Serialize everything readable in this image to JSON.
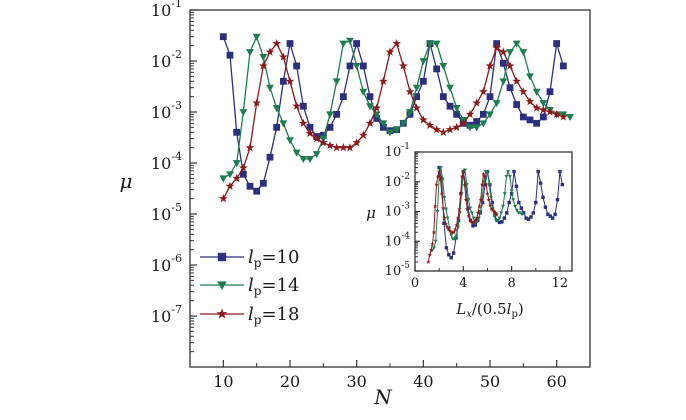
{
  "chart_data": [
    {
      "type": "line",
      "x_title": "N",
      "y_title": "μ",
      "y_scale": "log",
      "xlim": [
        5,
        65
      ],
      "ylim_exponents": [
        -8,
        -1
      ],
      "x_ticks": [
        10,
        20,
        30,
        40,
        50,
        60
      ],
      "y_ticks_exponents": [
        -7,
        -6,
        -5,
        -4,
        -3,
        -2,
        -1
      ],
      "legend_position": "bottom-left",
      "series": [
        {
          "name": "lp=10",
          "sub_base": "l",
          "sub": "p",
          "value_text": "=10",
          "color": "#2b2f7e",
          "marker": "square",
          "x": [
            10,
            11,
            12,
            13,
            14,
            15,
            16,
            17,
            18,
            19,
            20,
            21,
            22,
            23,
            24,
            25,
            26,
            27,
            28,
            29,
            30,
            31,
            32,
            33,
            34,
            35,
            36,
            37,
            38,
            39,
            40,
            41,
            42,
            43,
            44,
            45,
            46,
            47,
            48,
            49,
            50,
            51,
            52,
            53,
            54,
            55,
            56,
            57,
            58,
            59,
            60,
            61
          ],
          "y": [
            0.03,
            0.013,
            0.0004,
            6e-05,
            3.5e-05,
            2.8e-05,
            4e-05,
            0.00013,
            0.0005,
            0.004,
            0.022,
            0.008,
            0.0013,
            0.0005,
            0.00033,
            0.00035,
            0.0005,
            0.0009,
            0.002,
            0.008,
            0.022,
            0.008,
            0.002,
            0.00075,
            0.0005,
            0.00043,
            0.00045,
            0.0006,
            0.0009,
            0.002,
            0.004,
            0.022,
            0.007,
            0.002,
            0.0013,
            0.0009,
            0.0006,
            0.00055,
            0.00065,
            0.0009,
            0.002,
            0.022,
            0.009,
            0.003,
            0.0014,
            0.0008,
            0.0007,
            0.0006,
            0.0008,
            0.0025,
            0.022,
            0.008
          ]
        },
        {
          "name": "lp=14",
          "sub_base": "l",
          "sub": "p",
          "value_text": "=14",
          "color": "#1e7d4e",
          "marker": "triangle-down",
          "x": [
            10,
            11,
            12,
            13,
            14,
            15,
            16,
            17,
            18,
            19,
            20,
            21,
            22,
            23,
            24,
            25,
            26,
            27,
            28,
            29,
            30,
            31,
            32,
            33,
            34,
            35,
            36,
            37,
            38,
            39,
            40,
            41,
            42,
            43,
            44,
            45,
            46,
            47,
            48,
            49,
            50,
            51,
            52,
            53,
            54,
            55,
            56,
            57,
            58,
            59,
            60,
            61,
            62
          ],
          "y": [
            5e-05,
            6e-05,
            0.0001,
            0.001,
            0.015,
            0.03,
            0.012,
            0.003,
            0.0012,
            0.0006,
            0.00028,
            0.00016,
            0.00012,
            0.00012,
            0.00015,
            0.0003,
            0.0009,
            0.004,
            0.022,
            0.025,
            0.008,
            0.0025,
            0.0013,
            0.0009,
            0.0006,
            0.0004,
            0.00045,
            0.0006,
            0.001,
            0.003,
            0.01,
            0.022,
            0.022,
            0.008,
            0.003,
            0.0012,
            0.0007,
            0.0005,
            0.0005,
            0.0006,
            0.0009,
            0.0015,
            0.004,
            0.015,
            0.022,
            0.015,
            0.005,
            0.0025,
            0.0015,
            0.0011,
            0.0009,
            0.0009,
            0.0008
          ]
        },
        {
          "name": "lp=18",
          "sub_base": "l",
          "sub": "p",
          "value_text": "=18",
          "color": "#8b1a1a",
          "marker": "star",
          "x": [
            10,
            11,
            12,
            13,
            14,
            15,
            16,
            17,
            18,
            19,
            20,
            21,
            22,
            23,
            24,
            25,
            26,
            27,
            28,
            29,
            30,
            31,
            32,
            33,
            34,
            35,
            36,
            37,
            38,
            39,
            40,
            41,
            42,
            43,
            44,
            45,
            46,
            47,
            48,
            49,
            50,
            51,
            52,
            53,
            54,
            55,
            56,
            57,
            58,
            59,
            60,
            61
          ],
          "y": [
            2e-05,
            3.5e-05,
            5e-05,
            8e-05,
            0.0002,
            0.0015,
            0.008,
            0.015,
            0.022,
            0.012,
            0.004,
            0.0013,
            0.0006,
            0.00038,
            0.0003,
            0.00025,
            0.00022,
            0.0002,
            0.0002,
            0.0002,
            0.00025,
            0.00035,
            0.0006,
            0.0012,
            0.004,
            0.015,
            0.022,
            0.008,
            0.0025,
            0.0012,
            0.0007,
            0.00055,
            0.00045,
            0.0004,
            0.00045,
            0.0005,
            0.0006,
            0.0009,
            0.0015,
            0.0025,
            0.008,
            0.018,
            0.015,
            0.008,
            0.004,
            0.0025,
            0.0016,
            0.0012,
            0.0011,
            0.001,
            0.0009,
            0.0008
          ]
        }
      ]
    },
    {
      "type": "line",
      "role": "inset",
      "x_title_main": "L",
      "x_title_sub": "x",
      "x_title_mid": "/(0.5",
      "x_title_l": "l",
      "x_title_lsub": "p",
      "x_title_end": ")",
      "y_title": "μ",
      "y_scale": "log",
      "xlim": [
        0,
        13
      ],
      "ylim_exponents": [
        -5,
        -1
      ],
      "x_ticks": [
        0,
        4,
        8,
        12
      ],
      "x_tick_labels": [
        "0",
        "4",
        "8",
        "12"
      ],
      "y_ticks_exponents": [
        -5,
        -4,
        -3,
        -2,
        -1
      ],
      "series": [
        {
          "name": "lp=10",
          "color": "#2b2f7e",
          "marker": "square",
          "x": [
            2.0,
            2.2,
            2.4,
            2.6,
            2.8,
            3.0,
            3.2,
            3.4,
            3.6,
            3.8,
            4.0,
            4.2,
            4.4,
            4.6,
            4.8,
            5.0,
            5.2,
            5.4,
            5.6,
            5.8,
            6.0,
            6.2,
            6.4,
            6.6,
            6.8,
            7.0,
            7.2,
            7.4,
            7.6,
            7.8,
            8.0,
            8.2,
            8.4,
            8.6,
            8.8,
            9.0,
            9.2,
            9.4,
            9.6,
            9.8,
            10.0,
            10.2,
            10.4,
            10.6,
            10.8,
            11.0,
            11.2,
            11.4,
            11.6,
            11.8,
            12.0,
            12.2
          ],
          "y": [
            0.03,
            0.013,
            0.0004,
            6e-05,
            3.5e-05,
            2.8e-05,
            4e-05,
            0.00013,
            0.0005,
            0.004,
            0.022,
            0.008,
            0.0013,
            0.0005,
            0.00033,
            0.00035,
            0.0005,
            0.0009,
            0.002,
            0.008,
            0.022,
            0.008,
            0.002,
            0.00075,
            0.0005,
            0.00043,
            0.00045,
            0.0006,
            0.0009,
            0.002,
            0.004,
            0.022,
            0.007,
            0.002,
            0.0013,
            0.0009,
            0.0006,
            0.00055,
            0.00065,
            0.0009,
            0.002,
            0.022,
            0.009,
            0.003,
            0.0014,
            0.0008,
            0.0007,
            0.0006,
            0.0008,
            0.0025,
            0.022,
            0.008
          ]
        },
        {
          "name": "lp=14",
          "color": "#1e7d4e",
          "marker": "triangle-down",
          "x": [
            1.43,
            1.57,
            1.71,
            1.86,
            2.0,
            2.14,
            2.29,
            2.43,
            2.57,
            2.71,
            2.86,
            3.0,
            3.14,
            3.29,
            3.43,
            3.57,
            3.71,
            3.86,
            4.0,
            4.14,
            4.29,
            4.43,
            4.57,
            4.71,
            4.86,
            5.0,
            5.14,
            5.29,
            5.43,
            5.57,
            5.71,
            5.86,
            6.0,
            6.14,
            6.29,
            6.43,
            6.57,
            6.71,
            6.86,
            7.0,
            7.14,
            7.29,
            7.43,
            7.57,
            7.71,
            7.86,
            8.0,
            8.14,
            8.29,
            8.43,
            8.57,
            8.71,
            8.86
          ],
          "y": [
            5e-05,
            6e-05,
            0.0001,
            0.001,
            0.015,
            0.03,
            0.012,
            0.003,
            0.0012,
            0.0006,
            0.00028,
            0.00016,
            0.00012,
            0.00012,
            0.00015,
            0.0003,
            0.0009,
            0.004,
            0.022,
            0.025,
            0.008,
            0.0025,
            0.0013,
            0.0009,
            0.0006,
            0.0004,
            0.00045,
            0.0006,
            0.001,
            0.003,
            0.01,
            0.022,
            0.022,
            0.008,
            0.003,
            0.0012,
            0.0007,
            0.0005,
            0.0005,
            0.0006,
            0.0009,
            0.0015,
            0.004,
            0.015,
            0.022,
            0.015,
            0.005,
            0.0025,
            0.0015,
            0.0011,
            0.0009,
            0.0009,
            0.0008
          ]
        },
        {
          "name": "lp=18",
          "color": "#8b1a1a",
          "marker": "star",
          "x": [
            1.11,
            1.22,
            1.33,
            1.44,
            1.56,
            1.67,
            1.78,
            1.89,
            2.0,
            2.11,
            2.22,
            2.33,
            2.44,
            2.56,
            2.67,
            2.78,
            2.89,
            3.0,
            3.11,
            3.22,
            3.33,
            3.44,
            3.56,
            3.67,
            3.78,
            3.89,
            4.0,
            4.11,
            4.22,
            4.33,
            4.44,
            4.56,
            4.67,
            4.78,
            4.89,
            5.0,
            5.11,
            5.22,
            5.33,
            5.44,
            5.56,
            5.67,
            5.78,
            5.89,
            6.0,
            6.11,
            6.22,
            6.33,
            6.44,
            6.56,
            6.67,
            6.78
          ],
          "y": [
            2e-05,
            3.5e-05,
            5e-05,
            8e-05,
            0.0002,
            0.0015,
            0.008,
            0.015,
            0.022,
            0.012,
            0.004,
            0.0013,
            0.0006,
            0.00038,
            0.0003,
            0.00025,
            0.00022,
            0.0002,
            0.0002,
            0.0002,
            0.00025,
            0.00035,
            0.0006,
            0.0012,
            0.004,
            0.015,
            0.022,
            0.008,
            0.0025,
            0.0012,
            0.0007,
            0.00055,
            0.00045,
            0.0004,
            0.00045,
            0.0005,
            0.0006,
            0.0009,
            0.0015,
            0.0025,
            0.008,
            0.018,
            0.015,
            0.008,
            0.004,
            0.0025,
            0.0016,
            0.0012,
            0.0011,
            0.001,
            0.0009,
            0.0008
          ]
        }
      ]
    }
  ]
}
